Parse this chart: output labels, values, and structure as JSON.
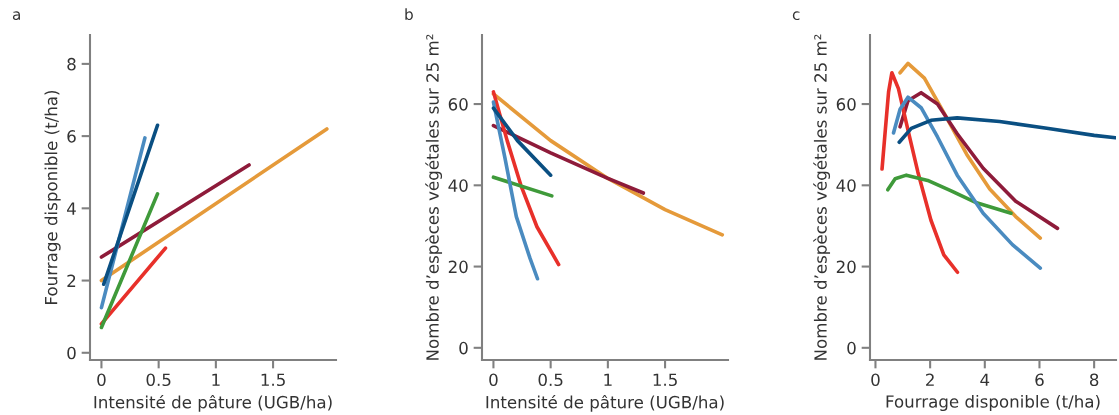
{
  "chart_data": [
    {
      "type": "line",
      "title": "a",
      "xlabel": "Intensité de pâture (UGB/ha)",
      "ylabel": "Fourrage disponible (t/ha)",
      "xlim": [
        -0.1,
        2.05
      ],
      "xticks": [
        0,
        0.5,
        1,
        1.5
      ],
      "ylim": [
        -0.2,
        8.8
      ],
      "yticks": [
        0,
        2,
        4,
        6,
        8
      ],
      "series": [
        {
          "color": "#e59a3a",
          "x": [
            0,
            1.97
          ],
          "values": [
            2.0,
            6.2
          ]
        },
        {
          "color": "#8e1b3a",
          "x": [
            0,
            1.29
          ],
          "values": [
            2.65,
            5.2
          ]
        },
        {
          "color": "#e8302a",
          "x": [
            0,
            0.56
          ],
          "values": [
            0.8,
            2.9
          ]
        },
        {
          "color": "#3f9a3a",
          "x": [
            0,
            0.49
          ],
          "values": [
            0.7,
            4.4
          ]
        },
        {
          "color": "#4a8bc0",
          "x": [
            0,
            0.38
          ],
          "values": [
            1.25,
            5.95
          ]
        },
        {
          "color": "#0a4f82",
          "x": [
            0.02,
            0.49
          ],
          "values": [
            1.9,
            6.3
          ]
        }
      ]
    },
    {
      "type": "line",
      "title": "b",
      "xlabel": "Intensité de pâture (UGB/ha)",
      "ylabel": "Nombre d’espèces végétales sur 25 m²",
      "xlim": [
        -0.1,
        2.05
      ],
      "xticks": [
        0,
        0.5,
        1,
        1.5
      ],
      "ylim": [
        -3,
        77
      ],
      "yticks": [
        0,
        20,
        40,
        60
      ],
      "series": [
        {
          "color": "#e59a3a",
          "x": [
            0,
            0.5,
            1,
            1.5,
            2.0
          ],
          "values": [
            62.5,
            51,
            41.7,
            34,
            27.8
          ]
        },
        {
          "color": "#8e1b3a",
          "x": [
            0,
            0.5,
            1,
            1.31
          ],
          "values": [
            54.7,
            48,
            41.7,
            38.1
          ]
        },
        {
          "color": "#e8302a",
          "x": [
            0,
            0.12,
            0.24,
            0.38,
            0.57
          ],
          "values": [
            63,
            51,
            40,
            29.8,
            20.5
          ]
        },
        {
          "color": "#3f9a3a",
          "x": [
            0,
            0.51
          ],
          "values": [
            42,
            37.4
          ]
        },
        {
          "color": "#4a8bc0",
          "x": [
            0,
            0.1,
            0.2,
            0.32,
            0.385
          ],
          "values": [
            60.5,
            46.8,
            32.3,
            22,
            17
          ]
        },
        {
          "color": "#0a4f82",
          "x": [
            0,
            0.21,
            0.5
          ],
          "values": [
            59,
            51,
            42.5
          ]
        }
      ]
    },
    {
      "type": "line",
      "title": "c",
      "xlabel": "Fourrage disponible (t/ha)",
      "ylabel": "Nombre d’espèces végétales sur 25 m²",
      "xlim": [
        -0.2,
        8.8
      ],
      "xticks": [
        0,
        2,
        4,
        6,
        8
      ],
      "ylim": [
        -3,
        77
      ],
      "yticks": [
        0,
        20,
        40,
        60
      ],
      "series": [
        {
          "color": "#e59a3a",
          "x": [
            0.9,
            1.19,
            1.79,
            2.5,
            3.34,
            4.18,
            5.13,
            6.03
          ],
          "values": [
            67.7,
            70,
            66.4,
            57.9,
            47.6,
            39.1,
            32.3,
            27
          ]
        },
        {
          "color": "#8e1b3a",
          "x": [
            0.9,
            1.19,
            1.67,
            2.27,
            2.99,
            3.94,
            5.13,
            6.66
          ],
          "values": [
            54.4,
            60.8,
            62.8,
            60,
            52.7,
            44.2,
            36.1,
            29.4
          ]
        },
        {
          "color": "#e8302a",
          "x": [
            0.24,
            0.36,
            0.48,
            0.6,
            0.84,
            1.19,
            1.55,
            2.03,
            2.5,
            3.0
          ],
          "values": [
            44,
            53.6,
            63,
            67.7,
            63.8,
            53.6,
            43.3,
            31.4,
            22.9,
            18.6
          ]
        },
        {
          "color": "#3f9a3a",
          "x": [
            0.45,
            0.72,
            1.13,
            1.91,
            2.75,
            3.7,
            4.96
          ],
          "values": [
            38.9,
            41.6,
            42.5,
            41.2,
            38.7,
            35.7,
            33.1
          ]
        },
        {
          "color": "#4a8bc0",
          "x": [
            0.66,
            0.9,
            1.19,
            1.67,
            2.27,
            2.99,
            3.94,
            5.01,
            6.03
          ],
          "values": [
            52.9,
            58.7,
            61.7,
            59.1,
            51.9,
            42.5,
            33.1,
            25.4,
            19.6
          ]
        },
        {
          "color": "#0a4f82",
          "x": [
            0.87,
            1.31,
            2.03,
            2.99,
            4.54,
            6.33,
            8.0,
            8.78
          ],
          "values": [
            50.6,
            54,
            56,
            56.6,
            55.7,
            54,
            52.3,
            51.7
          ]
        }
      ]
    }
  ]
}
